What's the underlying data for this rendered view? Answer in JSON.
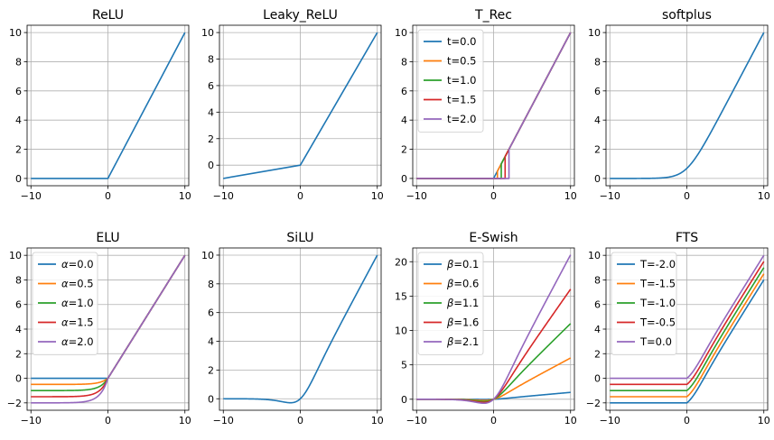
{
  "figure": {
    "colors": [
      "#1f77b4",
      "#ff7f0e",
      "#2ca02c",
      "#d62728",
      "#9467bd"
    ],
    "grid": true
  },
  "chart_data": [
    {
      "type": "line",
      "title": "ReLU",
      "func": "relu",
      "xlim": [
        -10.5,
        10.5
      ],
      "ylim": [
        -0.5,
        10.5
      ],
      "xticks": [
        -10,
        0,
        10
      ],
      "yticks": [
        0,
        2,
        4,
        6,
        8,
        10
      ],
      "series": [
        {
          "name": "",
          "param": 0,
          "x": [
            -10,
            0,
            10
          ],
          "y": [
            0,
            0,
            10
          ]
        }
      ],
      "legend": null
    },
    {
      "type": "line",
      "title": "Leaky_ReLU",
      "func": "leaky",
      "xlim": [
        -10.5,
        10.5
      ],
      "ylim": [
        -1.55,
        10.55
      ],
      "xticks": [
        -10,
        0,
        10
      ],
      "yticks": [
        0,
        2,
        4,
        6,
        8,
        10
      ],
      "series": [
        {
          "name": "",
          "param": 0.1,
          "x": [
            -10,
            0,
            10
          ],
          "y": [
            -1,
            0,
            10
          ]
        }
      ],
      "legend": null
    },
    {
      "type": "line",
      "title": "T_Rec",
      "func": "trec",
      "xlim": [
        -10.5,
        10.5
      ],
      "ylim": [
        -0.5,
        10.5
      ],
      "xticks": [
        -10,
        0,
        10
      ],
      "yticks": [
        0,
        2,
        4,
        6,
        8,
        10
      ],
      "series": [
        {
          "name": "t=0.0",
          "param": 0.0
        },
        {
          "name": "t=0.5",
          "param": 0.5
        },
        {
          "name": "t=1.0",
          "param": 1.0
        },
        {
          "name": "t=1.5",
          "param": 1.5
        },
        {
          "name": "t=2.0",
          "param": 2.0
        }
      ],
      "legend": "upper left"
    },
    {
      "type": "line",
      "title": "softplus",
      "func": "softplus",
      "xlim": [
        -10.5,
        10.5
      ],
      "ylim": [
        -0.5,
        10.5
      ],
      "xticks": [
        -10,
        0,
        10
      ],
      "yticks": [
        0,
        2,
        4,
        6,
        8,
        10
      ],
      "series": [
        {
          "name": "",
          "param": 0
        }
      ],
      "legend": null
    },
    {
      "type": "line",
      "title": "ELU",
      "func": "elu",
      "xlim": [
        -10.5,
        10.5
      ],
      "ylim": [
        -2.6,
        10.6
      ],
      "xticks": [
        -10,
        0,
        10
      ],
      "yticks": [
        -2,
        0,
        2,
        4,
        6,
        8,
        10
      ],
      "series": [
        {
          "name": "=0.0",
          "symbol": "α",
          "param": 0.0
        },
        {
          "name": "=0.5",
          "symbol": "α",
          "param": 0.5
        },
        {
          "name": "=1.0",
          "symbol": "α",
          "param": 1.0
        },
        {
          "name": "=1.5",
          "symbol": "α",
          "param": 1.5
        },
        {
          "name": "=2.0",
          "symbol": "α",
          "param": 2.0
        }
      ],
      "legend": "upper left"
    },
    {
      "type": "line",
      "title": "SiLU",
      "func": "silu",
      "xlim": [
        -10.5,
        10.5
      ],
      "ylim": [
        -0.8,
        10.5
      ],
      "xticks": [
        -10,
        0,
        10
      ],
      "yticks": [
        0,
        2,
        4,
        6,
        8,
        10
      ],
      "series": [
        {
          "name": "",
          "param": 0
        }
      ],
      "legend": null
    },
    {
      "type": "line",
      "title": "E-Swish",
      "func": "eswish",
      "xlim": [
        -10.5,
        10.5
      ],
      "ylim": [
        -1.6,
        22.0
      ],
      "xticks": [
        -10,
        0,
        10
      ],
      "yticks": [
        0,
        5,
        10,
        15,
        20
      ],
      "series": [
        {
          "name": "=0.1",
          "symbol": "β",
          "param": 0.1
        },
        {
          "name": "=0.6",
          "symbol": "β",
          "param": 0.6
        },
        {
          "name": "=1.1",
          "symbol": "β",
          "param": 1.1
        },
        {
          "name": "=1.6",
          "symbol": "β",
          "param": 1.6
        },
        {
          "name": "=2.1",
          "symbol": "β",
          "param": 2.1
        }
      ],
      "legend": "upper left"
    },
    {
      "type": "line",
      "title": "FTS",
      "func": "fts",
      "xlim": [
        -10.5,
        10.5
      ],
      "ylim": [
        -2.6,
        10.6
      ],
      "xticks": [
        -10,
        0,
        10
      ],
      "yticks": [
        -2,
        0,
        2,
        4,
        6,
        8,
        10
      ],
      "series": [
        {
          "name": "T=-2.0",
          "param": -2.0
        },
        {
          "name": "T=-1.5",
          "param": -1.5
        },
        {
          "name": "T=-1.0",
          "param": -1.0
        },
        {
          "name": "T=-0.5",
          "param": -0.5
        },
        {
          "name": "T=0.0",
          "param": 0.0
        }
      ],
      "legend": "upper left"
    }
  ]
}
